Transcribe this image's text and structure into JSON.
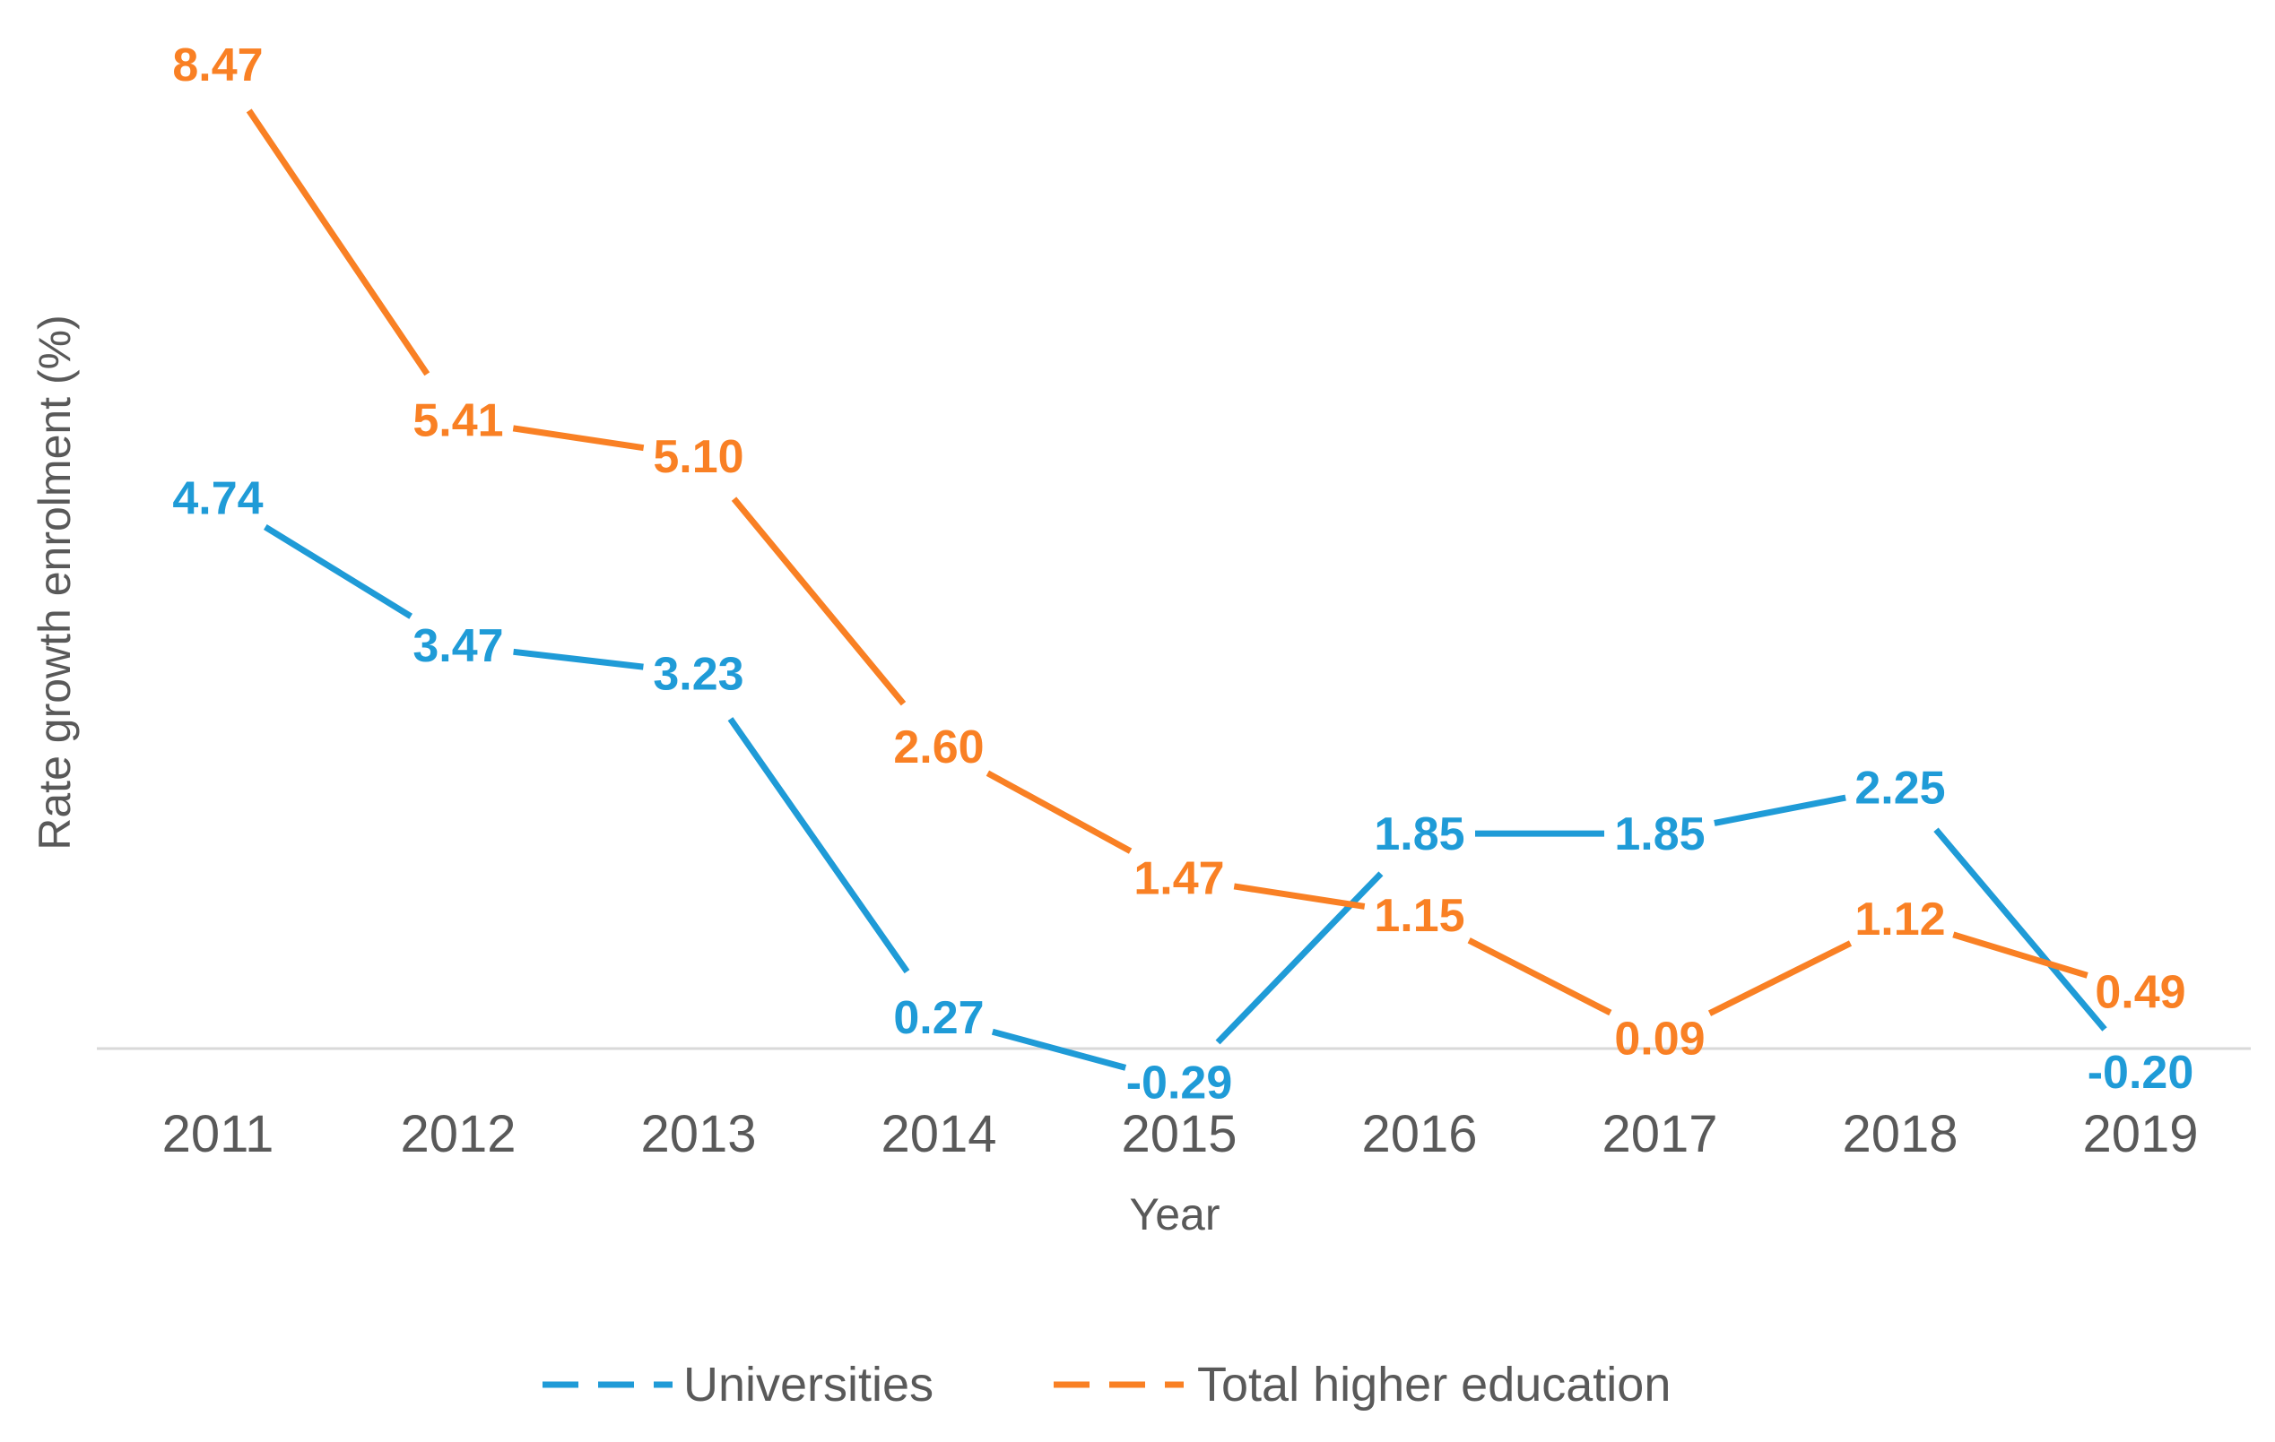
{
  "chart_data": {
    "type": "line",
    "title": "",
    "xlabel": "Year",
    "ylabel": "Rate growth enrolment (%)",
    "categories": [
      "2011",
      "2012",
      "2013",
      "2014",
      "2015",
      "2016",
      "2017",
      "2018",
      "2019"
    ],
    "ylim": [
      -0.6,
      9.0
    ],
    "grid": false,
    "legend_position": "bottom",
    "series": [
      {
        "name": "Universities",
        "color": "#1f9bd7",
        "values": [
          4.74,
          3.47,
          3.23,
          0.27,
          -0.29,
          1.85,
          1.85,
          2.25,
          -0.2
        ],
        "labels": [
          "4.74",
          "3.47",
          "3.23",
          "0.27",
          "-0.29",
          "1.85",
          "1.85",
          "2.25",
          "-0.20"
        ]
      },
      {
        "name": "Total higher education",
        "color": "#f98024",
        "values": [
          8.47,
          5.41,
          5.1,
          2.6,
          1.47,
          1.15,
          0.09,
          1.12,
          0.49
        ],
        "labels": [
          "8.47",
          "5.41",
          "5.10",
          "2.60",
          "1.47",
          "1.15",
          "0.09",
          "1.12",
          "0.49"
        ]
      }
    ]
  }
}
